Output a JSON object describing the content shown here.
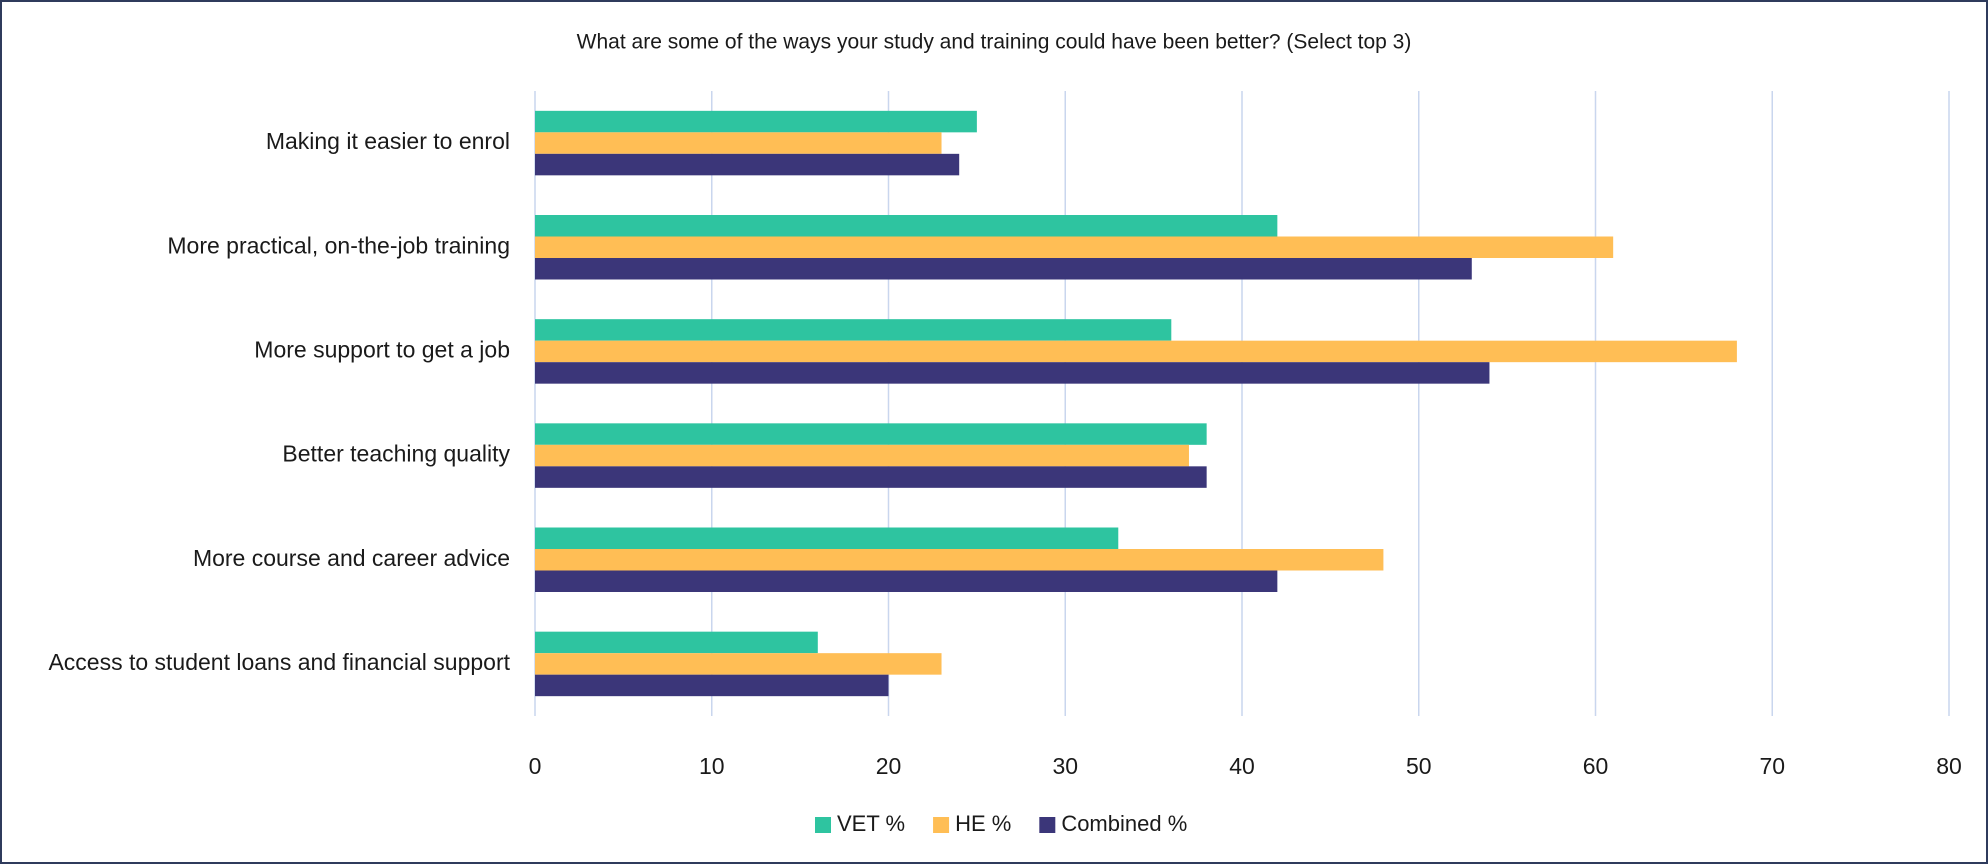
{
  "chart_data": {
    "type": "bar",
    "orientation": "horizontal",
    "title": "What are some of the ways your study and training could have been better? (Select top 3)",
    "categories": [
      "Making it easier to enrol",
      "More practical, on-the-job training",
      "More support to get a job",
      "Better teaching quality",
      "More course and career advice",
      "Access to student loans and financial support"
    ],
    "series": [
      {
        "name": "VET %",
        "color": "#2ec4a0",
        "values": [
          25,
          42,
          36,
          38,
          33,
          16
        ]
      },
      {
        "name": "HE %",
        "color": "#ffbe55",
        "values": [
          23,
          61,
          68,
          37,
          48,
          23
        ]
      },
      {
        "name": "Combined %",
        "color": "#3b3679",
        "values": [
          24,
          53,
          54,
          38,
          42,
          20
        ]
      }
    ],
    "xlim": [
      0,
      80
    ],
    "xticks": [
      0,
      10,
      20,
      30,
      40,
      50,
      60,
      70,
      80
    ],
    "grid": true,
    "legend": "bottom"
  }
}
